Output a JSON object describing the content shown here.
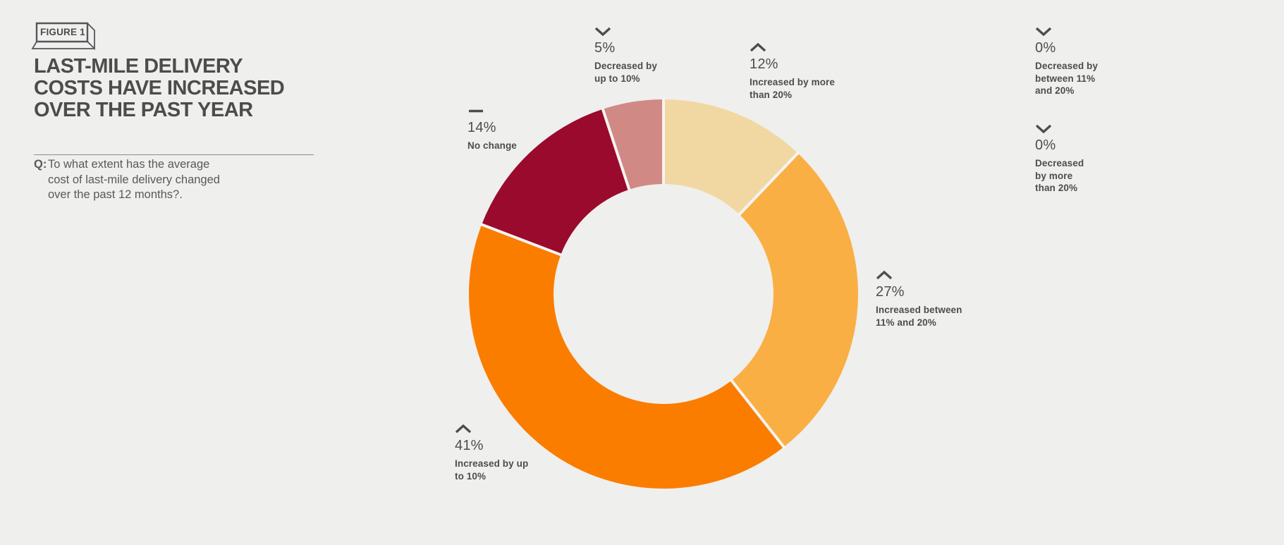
{
  "page": {
    "background_color": "#efefed",
    "text_color": "#4d4d4d",
    "body_text_color": "#58595b"
  },
  "figure_badge": {
    "label": "FIGURE 1"
  },
  "header": {
    "title": "LAST-MILE DELIVERY\nCOSTS HAVE INCREASED\nOVER THE PAST YEAR"
  },
  "question": {
    "prefix": "Q:",
    "text": "To what extent has the average\ncost of last-mile delivery changed\nover the past 12 months?."
  },
  "chart_data": {
    "type": "pie",
    "subtype": "donut",
    "title": "Last-mile delivery costs have increased over the past year",
    "start_angle_deg": 0,
    "direction": "clockwise",
    "inner_radius_ratio": 0.565,
    "gap_color": "#f6f4f2",
    "legend_position": "around-chart-callouts",
    "categories": [
      "Increased by more than 20%",
      "Increased between 11% and 20%",
      "Increased by up to 10%",
      "No change",
      "Decreased by up to 10%",
      "Decreased by between 11% and 20%",
      "Decreased by more than 20%"
    ],
    "values": [
      12,
      27,
      41,
      14,
      5,
      0,
      0
    ],
    "colors": [
      "#f1d8a3",
      "#faaf44",
      "#fa7d00",
      "#9a0a2d",
      "#d08984",
      null,
      null
    ]
  },
  "callouts": [
    {
      "value": "5%",
      "desc": "Decreased by\nup to 10%",
      "trend": "down"
    },
    {
      "value": "12%",
      "desc": "Increased by more\nthan 20%",
      "trend": "up"
    },
    {
      "value": "0%",
      "desc": "Decreased by\nbetween 11%\nand 20%",
      "trend": "down"
    },
    {
      "value": "0%",
      "desc": "Decreased\nby more\nthan 20%",
      "trend": "down"
    },
    {
      "value": "14%",
      "desc": "No change",
      "trend": "none"
    },
    {
      "value": "27%",
      "desc": "Increased between\n11% and 20%",
      "trend": "up"
    },
    {
      "value": "41%",
      "desc": "Increased by up\nto 10%",
      "trend": "up"
    }
  ]
}
